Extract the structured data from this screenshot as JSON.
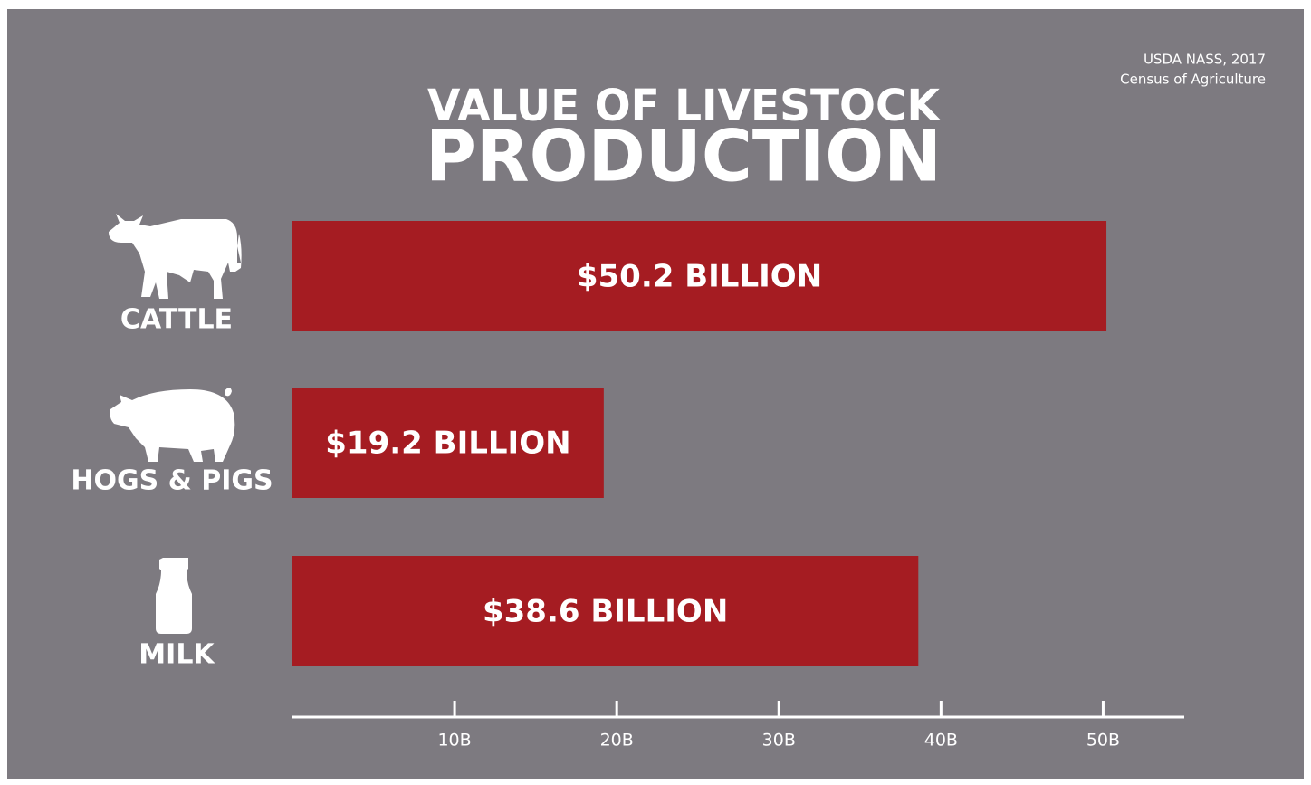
{
  "chart_data": {
    "type": "bar",
    "orientation": "horizontal",
    "title_lines": [
      "VALUE OF LIVESTOCK",
      "PRODUCTION"
    ],
    "source_lines": [
      "USDA NASS, 2017",
      "Census of Agriculture"
    ],
    "categories": [
      "CATTLE",
      "HOGS & PIGS",
      "MILK"
    ],
    "values": [
      50.2,
      19.2,
      38.6
    ],
    "value_labels": [
      "$50.2 BILLION",
      "$19.2 BILLION",
      "$38.6 BILLION"
    ],
    "color": "#a51c22",
    "xlim": [
      0,
      55
    ],
    "xticks": [
      {
        "value": 10,
        "label": "10B"
      },
      {
        "value": 20,
        "label": "20B"
      },
      {
        "value": 30,
        "label": "30B"
      },
      {
        "value": 40,
        "label": "40B"
      },
      {
        "value": 50,
        "label": "50B"
      }
    ],
    "grid": false
  }
}
